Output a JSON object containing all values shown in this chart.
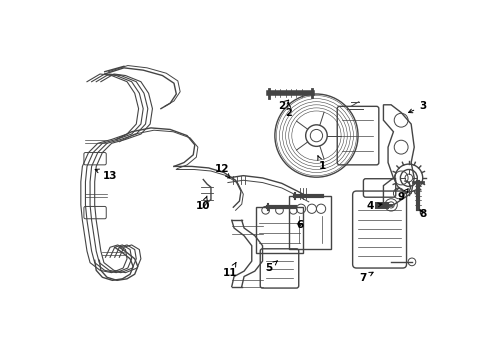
{
  "background_color": "#ffffff",
  "line_color": "#444444",
  "text_color": "#000000",
  "fig_width": 4.89,
  "fig_height": 3.6,
  "dpi": 100
}
